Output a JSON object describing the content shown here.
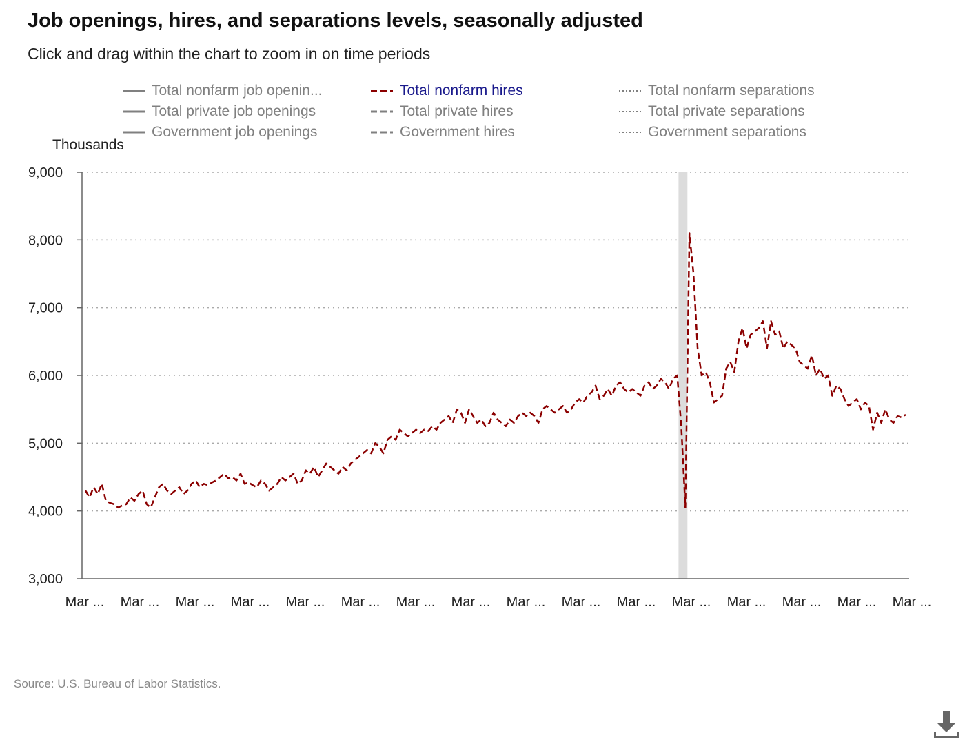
{
  "header": {
    "title": "Job openings, hires, and separations levels, seasonally adjusted",
    "subtitle": "Click and drag within the chart to zoom in on time periods"
  },
  "legend": [
    {
      "label": "Total nonfarm job openin...",
      "style": "solid",
      "active": false
    },
    {
      "label": "Total nonfarm hires",
      "style": "dashed",
      "active": true
    },
    {
      "label": "Total nonfarm separations",
      "style": "dotted",
      "active": false
    },
    {
      "label": "Total private job openings",
      "style": "solid",
      "active": false
    },
    {
      "label": "Total private hires",
      "style": "dashed",
      "active": false
    },
    {
      "label": "Total private separations",
      "style": "dotted",
      "active": false
    },
    {
      "label": "Government job openings",
      "style": "solid",
      "active": false
    },
    {
      "label": "Government hires",
      "style": "dashed",
      "active": false
    },
    {
      "label": "Government separations",
      "style": "dotted",
      "active": false
    }
  ],
  "source": "Source: U.S. Bureau of Labor Statistics.",
  "download_icon": "download-icon",
  "colors": {
    "series": "#8b0000",
    "inactive": "#808080",
    "active_legend": "#1a1a8c",
    "grid": "#aaaaaa",
    "recession": "#dcdcdc"
  },
  "chart_data": {
    "type": "line",
    "title": "Job openings, hires, and separations levels, seasonally adjusted",
    "ylabel": "Thousands",
    "ylim": [
      3000,
      9000
    ],
    "yticks": [
      "3,000",
      "4,000",
      "5,000",
      "6,000",
      "7,000",
      "8,000",
      "9,000"
    ],
    "xticks": [
      "Mar ...",
      "Mar ...",
      "Mar ...",
      "Mar ...",
      "Mar ...",
      "Mar ...",
      "Mar ...",
      "Mar ...",
      "Mar ...",
      "Mar ...",
      "Mar ...",
      "Mar ...",
      "Mar ...",
      "Mar ...",
      "Mar ...",
      "Mar ..."
    ],
    "grid": true,
    "recession_shading": {
      "start_month_index": 146,
      "end_month_index": 147
    },
    "series": [
      {
        "name": "Total nonfarm hires",
        "style": "dashed",
        "values": [
          4300,
          4200,
          4350,
          4250,
          4400,
          4150,
          4120,
          4100,
          4050,
          4080,
          4100,
          4200,
          4150,
          4250,
          4300,
          4100,
          4050,
          4200,
          4350,
          4400,
          4300,
          4250,
          4300,
          4350,
          4250,
          4300,
          4400,
          4450,
          4350,
          4400,
          4380,
          4420,
          4450,
          4500,
          4550,
          4480,
          4500,
          4450,
          4550,
          4400,
          4420,
          4380,
          4350,
          4450,
          4400,
          4300,
          4350,
          4400,
          4500,
          4450,
          4500,
          4550,
          4400,
          4450,
          4600,
          4550,
          4650,
          4500,
          4600,
          4700,
          4650,
          4600,
          4550,
          4650,
          4600,
          4700,
          4750,
          4800,
          4850,
          4900,
          4850,
          5000,
          4950,
          4850,
          5050,
          5100,
          5050,
          5200,
          5150,
          5100,
          5150,
          5200,
          5150,
          5200,
          5180,
          5250,
          5200,
          5300,
          5350,
          5400,
          5300,
          5500,
          5450,
          5300,
          5500,
          5400,
          5300,
          5350,
          5250,
          5300,
          5450,
          5350,
          5300,
          5250,
          5350,
          5300,
          5400,
          5450,
          5400,
          5450,
          5400,
          5300,
          5500,
          5550,
          5500,
          5450,
          5500,
          5550,
          5450,
          5500,
          5600,
          5650,
          5600,
          5700,
          5750,
          5850,
          5650,
          5700,
          5800,
          5700,
          5850,
          5900,
          5800,
          5750,
          5800,
          5750,
          5700,
          5850,
          5900,
          5800,
          5850,
          5950,
          5900,
          5800,
          5950,
          6000,
          5250,
          4050,
          8100,
          7500,
          6400,
          6000,
          6050,
          5900,
          5600,
          5650,
          5700,
          6100,
          6200,
          6050,
          6500,
          6700,
          6400,
          6600,
          6650,
          6700,
          6800,
          6400,
          6800,
          6600,
          6650,
          6400,
          6500,
          6450,
          6400,
          6200,
          6150,
          6100,
          6300,
          6000,
          6100,
          5950,
          6000,
          5700,
          5850,
          5800,
          5650,
          5550,
          5600,
          5650,
          5500,
          5600,
          5550,
          5200,
          5450,
          5300,
          5500,
          5350,
          5300,
          5400,
          5380,
          5420
        ]
      }
    ]
  }
}
